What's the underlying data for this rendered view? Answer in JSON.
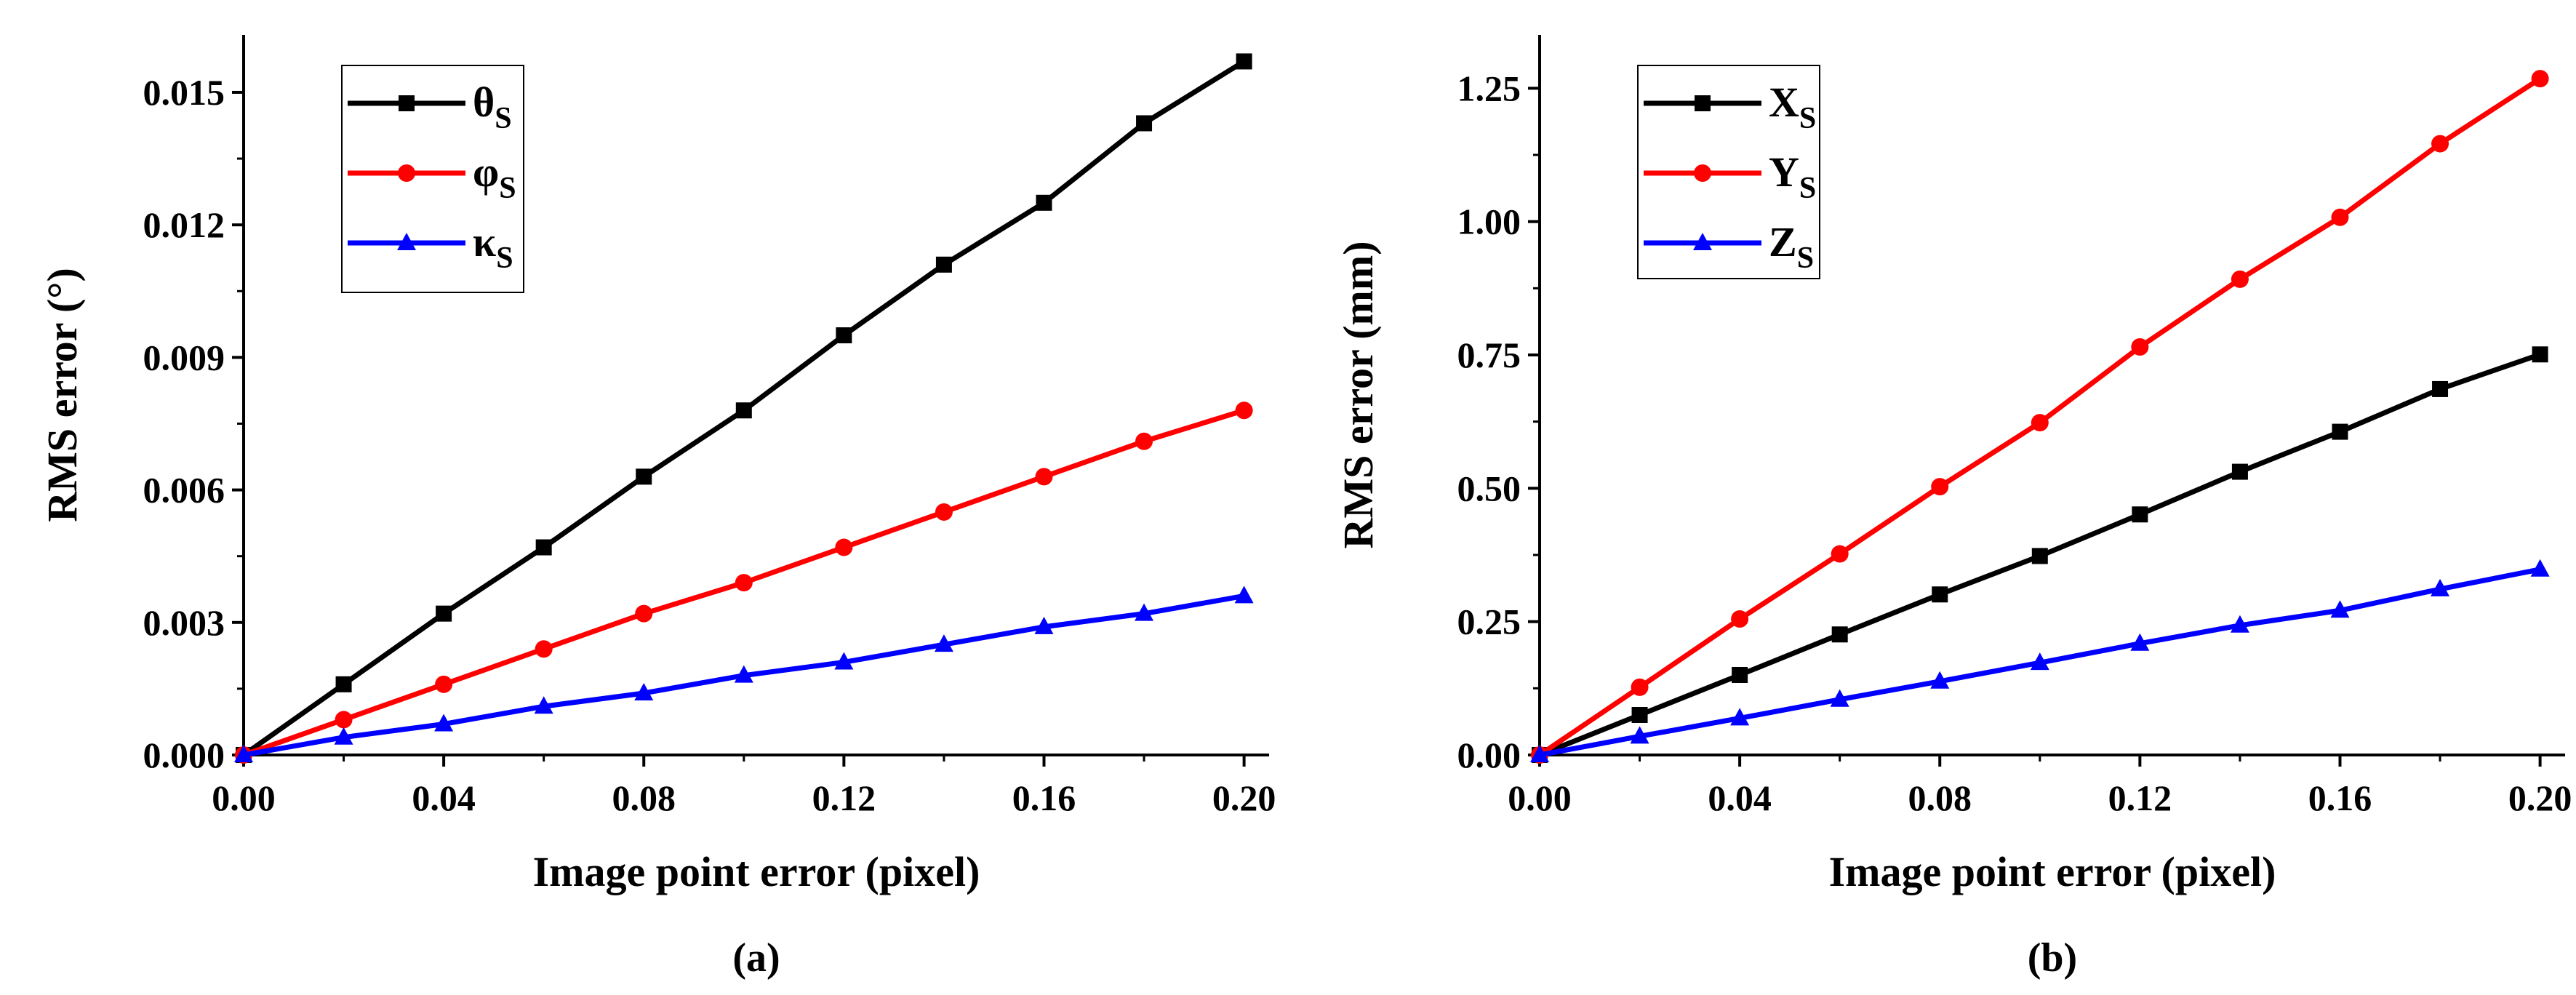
{
  "colors": {
    "series_black": "#000000",
    "series_red": "#ff0000",
    "series_blue": "#0000ff"
  },
  "chart_data": [
    {
      "type": "line",
      "panel_label": "(a)",
      "xlabel": "Image point error (pixel)",
      "ylabel": "RMS error (°)",
      "xlim": [
        0,
        0.205
      ],
      "ylim": [
        0,
        0.0163
      ],
      "xticks": [
        0,
        0.04,
        0.08,
        0.12,
        0.16,
        0.2
      ],
      "xtick_labels": [
        "0.00",
        "0.04",
        "0.08",
        "0.12",
        "0.16",
        "0.20"
      ],
      "yticks": [
        0,
        0.003,
        0.006,
        0.009,
        0.012,
        0.015
      ],
      "ytick_labels": [
        "0.000",
        "0.003",
        "0.006",
        "0.009",
        "0.012",
        "0.015"
      ],
      "legend_position": "top-left",
      "x": [
        0,
        0.02,
        0.04,
        0.06,
        0.08,
        0.1,
        0.12,
        0.14,
        0.16,
        0.18,
        0.2
      ],
      "series": [
        {
          "name": "θ",
          "subscript": "S",
          "color": "#000000",
          "marker": "square",
          "values": [
            0,
            0.0016,
            0.0032,
            0.0047,
            0.0063,
            0.0078,
            0.0095,
            0.0111,
            0.0125,
            0.0143,
            0.0157
          ]
        },
        {
          "name": "φ",
          "subscript": "S",
          "color": "#ff0000",
          "marker": "circle",
          "values": [
            0,
            0.0008,
            0.0016,
            0.0024,
            0.0032,
            0.0039,
            0.0047,
            0.0055,
            0.0063,
            0.0071,
            0.0078
          ]
        },
        {
          "name": "κ",
          "subscript": "S",
          "color": "#0000ff",
          "marker": "triangle",
          "values": [
            0,
            0.0004,
            0.0007,
            0.0011,
            0.0014,
            0.0018,
            0.0021,
            0.0025,
            0.0029,
            0.0032,
            0.0036
          ]
        }
      ]
    },
    {
      "type": "line",
      "panel_label": "(b)",
      "xlabel": "Image point error (pixel)",
      "ylabel": "RMS error (mm)",
      "xlim": [
        0,
        0.205
      ],
      "ylim": [
        0,
        1.35
      ],
      "xticks": [
        0,
        0.04,
        0.08,
        0.12,
        0.16,
        0.2
      ],
      "xtick_labels": [
        "0.00",
        "0.04",
        "0.08",
        "0.12",
        "0.16",
        "0.20"
      ],
      "yticks": [
        0,
        0.25,
        0.5,
        0.75,
        1.0,
        1.25
      ],
      "ytick_labels": [
        "0.00",
        "0.25",
        "0.50",
        "0.75",
        "1.00",
        "1.25"
      ],
      "legend_position": "top-left",
      "x": [
        0,
        0.02,
        0.04,
        0.06,
        0.08,
        0.1,
        0.12,
        0.14,
        0.16,
        0.18,
        0.2
      ],
      "series": [
        {
          "name": "X",
          "subscript": "S",
          "color": "#000000",
          "marker": "square",
          "values": [
            0,
            0.075,
            0.15,
            0.226,
            0.301,
            0.373,
            0.451,
            0.531,
            0.606,
            0.686,
            0.751
          ]
        },
        {
          "name": "Y",
          "subscript": "S",
          "color": "#ff0000",
          "marker": "circle",
          "values": [
            0,
            0.127,
            0.255,
            0.377,
            0.503,
            0.623,
            0.765,
            0.892,
            1.008,
            1.146,
            1.268
          ]
        },
        {
          "name": "Z",
          "subscript": "S",
          "color": "#0000ff",
          "marker": "triangle",
          "values": [
            0,
            0.035,
            0.069,
            0.104,
            0.138,
            0.173,
            0.209,
            0.243,
            0.271,
            0.311,
            0.348
          ]
        }
      ]
    }
  ]
}
